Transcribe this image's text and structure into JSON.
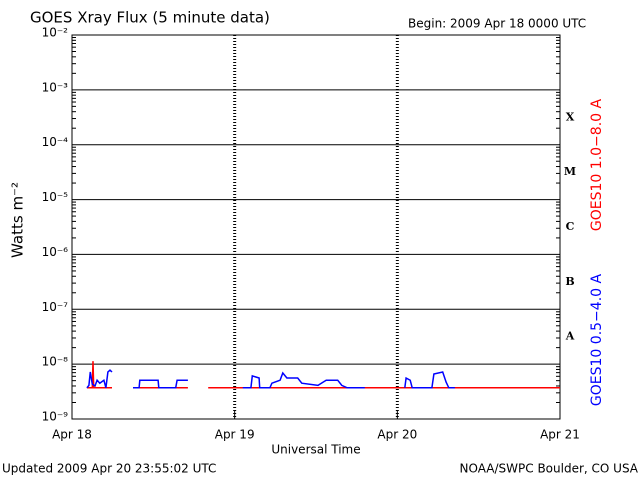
{
  "chart_data": {
    "type": "line",
    "title": "GOES Xray Flux (5 minute data)",
    "subtitle": "Begin:  2009 Apr 18 0000 UTC",
    "y_label": "Watts m⁻²",
    "x_label": "Universal Time",
    "footer_left": "Updated 2009 Apr 20 23:55:02 UTC",
    "footer_right": "NOAA/SWPC Boulder, CO USA",
    "log_y": true,
    "grid": true,
    "xlim": [
      0,
      72
    ],
    "xticks": [
      {
        "value": 0,
        "label": "Apr 18"
      },
      {
        "value": 24,
        "label": "Apr 19"
      },
      {
        "value": 48,
        "label": "Apr 20"
      },
      {
        "value": 72,
        "label": "Apr 21"
      }
    ],
    "ylim": [
      1e-09,
      0.01
    ],
    "yticks": [
      {
        "value": 1e-09,
        "label": "10⁻⁹"
      },
      {
        "value": 1e-08,
        "label": "10⁻⁸"
      },
      {
        "value": 1e-07,
        "label": "10⁻⁷"
      },
      {
        "value": 1e-06,
        "label": "10⁻⁶"
      },
      {
        "value": 1e-05,
        "label": "10⁻⁵"
      },
      {
        "value": 0.0001,
        "label": "10⁻⁴"
      },
      {
        "value": 0.001,
        "label": "10⁻³"
      },
      {
        "value": 0.01,
        "label": "10⁻²"
      }
    ],
    "flare_classes": [
      {
        "label": "X",
        "value": 0.0001
      },
      {
        "label": "M",
        "value": 1e-05
      },
      {
        "label": "C",
        "value": 1e-06
      },
      {
        "label": "B",
        "value": 1e-07
      },
      {
        "label": "A",
        "value": 1e-08
      }
    ],
    "series": [
      {
        "name": "GOES10 1.0−8.0 A",
        "color": "#ff0000",
        "x": [
          2.2,
          3.0,
          3.1,
          3.2,
          5.9,
          7.4,
          9.0,
          17.1,
          18.6,
          20.1,
          72
        ],
        "values": [
          3.7e-09,
          3.7e-09,
          1.13e-08,
          3.7e-09,
          3.7e-09,
          null,
          3.7e-09,
          3.7e-09,
          null,
          3.7e-09,
          3.7e-09
        ]
      },
      {
        "name": "GOES10 0.5−4.0 A",
        "color": "#0000ff",
        "x": [
          2.2,
          2.5,
          2.7,
          3.0,
          3.4,
          3.7,
          4.1,
          4.7,
          5.0,
          5.3,
          5.6,
          5.9,
          7.4,
          9.0,
          9.9,
          10.0,
          12.7,
          12.8,
          15.3,
          15.5,
          17.1,
          21.1,
          25.2,
          26.4,
          26.6,
          27.6,
          27.7,
          29.2,
          29.5,
          30.7,
          31.1,
          31.7,
          33.3,
          33.9,
          36.3,
          37.5,
          39.2,
          39.8,
          40.6,
          43.2,
          46.2,
          49.1,
          49.3,
          49.9,
          50.2,
          53.1,
          53.4,
          54.7,
          55.2,
          55.6,
          56.5
        ],
        "values": [
          3.7e-09,
          4.1e-09,
          7.2e-09,
          4.3e-09,
          4e-09,
          5.1e-09,
          4.5e-09,
          5.1e-09,
          3.7e-09,
          7.2e-09,
          7.8e-09,
          7.2e-09,
          null,
          3.7e-09,
          3.7e-09,
          5.1e-09,
          5.1e-09,
          3.7e-09,
          3.7e-09,
          5.1e-09,
          5.1e-09,
          null,
          3.7e-09,
          3.7e-09,
          6.1e-09,
          5.6e-09,
          3.7e-09,
          3.7e-09,
          4.5e-09,
          5.1e-09,
          6.9e-09,
          5.6e-09,
          5.6e-09,
          4.5e-09,
          4.1e-09,
          5.1e-09,
          5.1e-09,
          4.1e-09,
          3.7e-09,
          3.7e-09,
          null,
          3.7e-09,
          5.6e-09,
          5.1e-09,
          3.7e-09,
          3.7e-09,
          6.6e-09,
          7.2e-09,
          4.7e-09,
          3.7e-09,
          3.7e-09
        ]
      }
    ]
  }
}
